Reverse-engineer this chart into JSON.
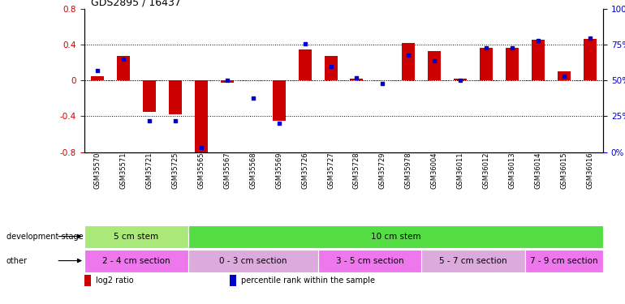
{
  "title": "GDS2895 / 16437",
  "samples": [
    "GSM35570",
    "GSM35571",
    "GSM35721",
    "GSM35725",
    "GSM35565",
    "GSM35567",
    "GSM35568",
    "GSM35569",
    "GSM35726",
    "GSM35727",
    "GSM35728",
    "GSM35729",
    "GSM35978",
    "GSM36004",
    "GSM36011",
    "GSM36012",
    "GSM36013",
    "GSM36014",
    "GSM36015",
    "GSM36016"
  ],
  "log2_ratio": [
    0.05,
    0.28,
    -0.35,
    -0.38,
    -0.82,
    -0.02,
    0.0,
    -0.45,
    0.35,
    0.28,
    0.02,
    0.0,
    0.42,
    0.33,
    0.02,
    0.37,
    0.37,
    0.46,
    0.1,
    0.47
  ],
  "percentile": [
    57,
    65,
    22,
    22,
    3,
    50,
    38,
    20,
    76,
    60,
    52,
    48,
    68,
    64,
    50,
    73,
    73,
    78,
    53,
    80
  ],
  "ylim_left": [
    -0.8,
    0.8
  ],
  "ylim_right": [
    0,
    100
  ],
  "left_ticks": [
    -0.8,
    -0.4,
    0.0,
    0.4,
    0.8
  ],
  "right_ticks": [
    0,
    25,
    50,
    75,
    100
  ],
  "bar_color": "#cc0000",
  "dot_color": "#0000cc",
  "development_stage_groups": [
    {
      "label": "5 cm stem",
      "start": 0,
      "end": 4,
      "color": "#aae87a"
    },
    {
      "label": "10 cm stem",
      "start": 4,
      "end": 20,
      "color": "#55dd44"
    }
  ],
  "other_groups": [
    {
      "label": "2 - 4 cm section",
      "start": 0,
      "end": 4,
      "color": "#ee77ee"
    },
    {
      "label": "0 - 3 cm section",
      "start": 4,
      "end": 9,
      "color": "#ddaadd"
    },
    {
      "label": "3 - 5 cm section",
      "start": 9,
      "end": 13,
      "color": "#ee77ee"
    },
    {
      "label": "5 - 7 cm section",
      "start": 13,
      "end": 17,
      "color": "#ddaadd"
    },
    {
      "label": "7 - 9 cm section",
      "start": 17,
      "end": 20,
      "color": "#ee77ee"
    }
  ],
  "legend_items": [
    {
      "label": "log2 ratio",
      "color": "#cc0000"
    },
    {
      "label": "percentile rank within the sample",
      "color": "#0000cc"
    }
  ],
  "axis_label_color_left": "#cc0000",
  "axis_label_color_right": "#0000cc",
  "dev_label": "development stage",
  "other_label": "other"
}
